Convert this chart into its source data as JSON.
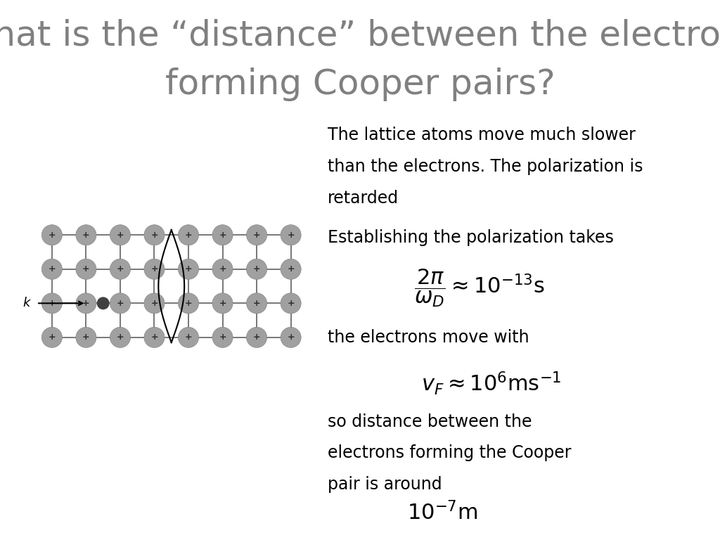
{
  "title_line1": "What is the “distance” between the electrons",
  "title_line2": "forming Cooper pairs?",
  "title_fontsize": 36,
  "title_color": "#808080",
  "bg_color": "#ffffff",
  "text1a": "The lattice atoms move much slower",
  "text1b": "than the electrons. The polarization is",
  "text1c": "retarded",
  "text2": "Establishing the polarization takes",
  "text3": "the electrons move with",
  "text4a": "so distance between the",
  "text4b": "electrons forming the Cooper",
  "text4c": "pair is around",
  "lattice_color": "#a0a0a0",
  "lattice_line_color": "#606060",
  "electron_color": "#404040",
  "text_color": "#000000",
  "body_fontsize": 17,
  "formula_fontsize": 22
}
